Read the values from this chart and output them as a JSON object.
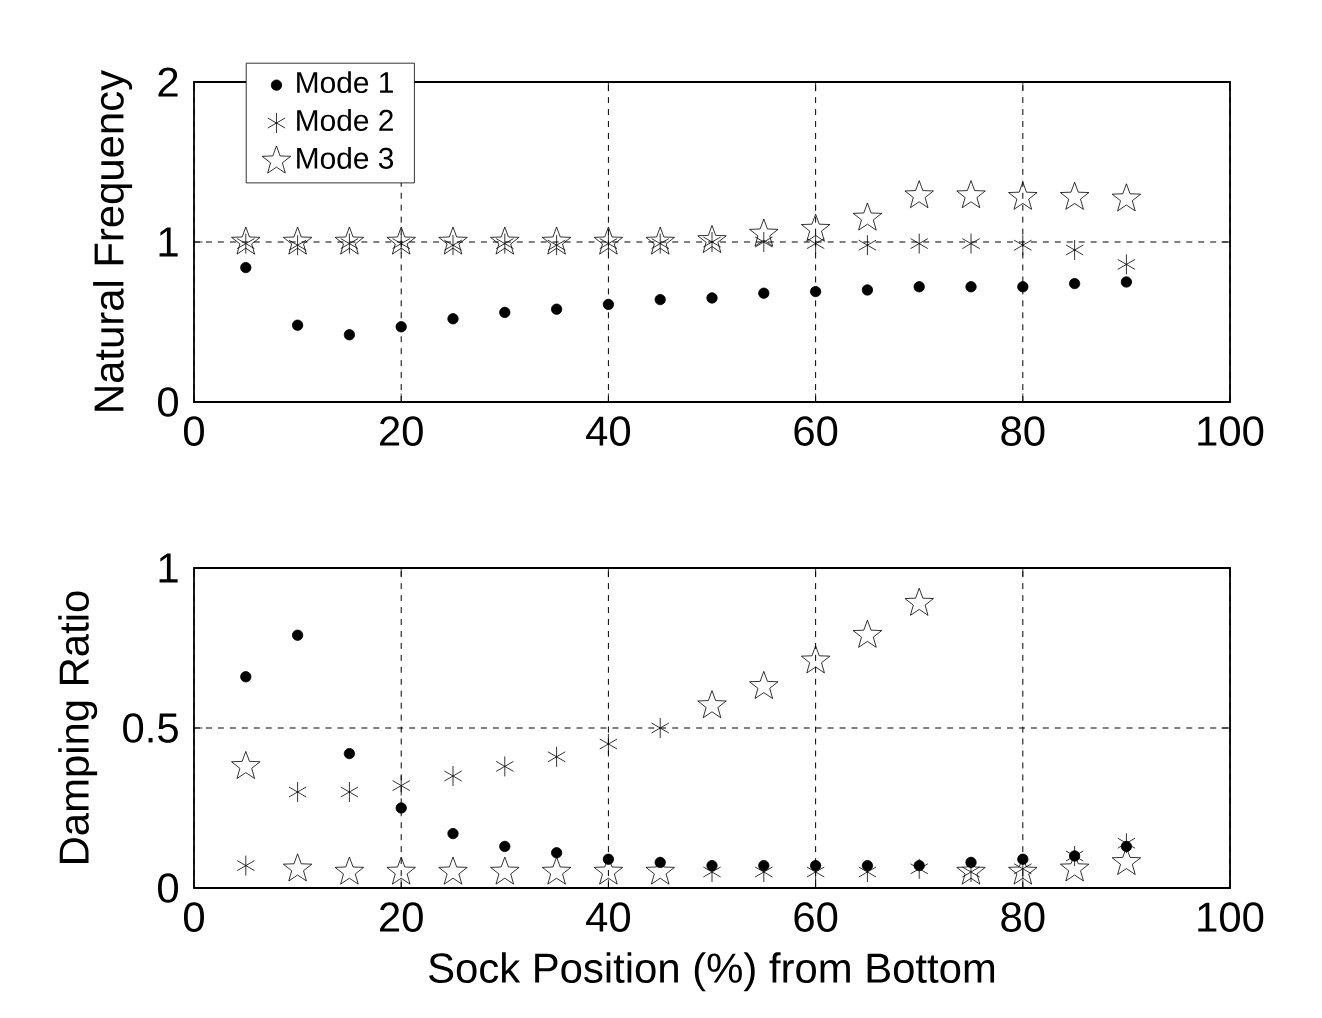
{
  "chart_data": [
    {
      "type": "scatter",
      "ylabel": "Natural Frequency",
      "x": [
        5,
        10,
        15,
        20,
        25,
        30,
        35,
        40,
        45,
        50,
        55,
        60,
        65,
        70,
        75,
        80,
        85,
        90
      ],
      "xlim": [
        0,
        100
      ],
      "ylim": [
        0,
        2
      ],
      "xticks": [
        0,
        20,
        40,
        60,
        80,
        100
      ],
      "yticks": [
        0,
        1,
        2
      ],
      "grid": true,
      "legend": "top left",
      "series": [
        {
          "name": "Mode 1",
          "color": "#000000",
          "marker": "circle",
          "values": [
            0.84,
            0.48,
            0.42,
            0.47,
            0.52,
            0.56,
            0.58,
            0.61,
            0.64,
            0.65,
            0.68,
            0.69,
            0.7,
            0.72,
            0.72,
            0.72,
            0.74,
            0.75
          ]
        },
        {
          "name": "Mode 2",
          "color": "#000000",
          "marker": "cross",
          "values": [
            0.99,
            0.98,
            0.99,
            0.99,
            0.98,
            0.99,
            0.98,
            0.99,
            0.99,
            1.0,
            1.0,
            0.99,
            0.98,
            0.99,
            0.99,
            0.98,
            0.95,
            0.86
          ]
        },
        {
          "name": "Mode 3",
          "color": "#000000",
          "marker": "star",
          "values": [
            1.0,
            1.0,
            1.0,
            1.0,
            1.0,
            1.0,
            1.0,
            1.0,
            1.0,
            1.01,
            1.05,
            1.08,
            1.15,
            1.29,
            1.29,
            1.28,
            1.28,
            1.27
          ]
        }
      ]
    },
    {
      "type": "scatter",
      "ylabel": "Damping Ratio",
      "xlabel": "Sock Position (%) from Bottom",
      "x": [
        5,
        10,
        15,
        20,
        25,
        30,
        35,
        40,
        45,
        50,
        55,
        60,
        65,
        70,
        75,
        80,
        85,
        90
      ],
      "xlim": [
        0,
        100
      ],
      "ylim": [
        0,
        1
      ],
      "xticks": [
        0,
        20,
        40,
        60,
        80,
        100
      ],
      "yticks": [
        0,
        0.5,
        1
      ],
      "grid": true,
      "series": [
        {
          "color": "#000000",
          "marker": "circle",
          "values": [
            0.66,
            0.79,
            0.42,
            0.25,
            0.17,
            0.13,
            0.11,
            0.09,
            0.08,
            0.07,
            0.07,
            0.07,
            0.07,
            0.07,
            0.08,
            0.09,
            0.1,
            0.13
          ]
        },
        {
          "color": "#000000",
          "marker": "cross",
          "values": [
            0.07,
            0.3,
            0.3,
            0.32,
            0.35,
            0.38,
            0.41,
            0.45,
            0.5,
            0.05,
            0.05,
            0.05,
            0.05,
            0.06,
            0.05,
            0.06,
            0.1,
            0.14
          ]
        },
        {
          "color": "#000000",
          "marker": "star",
          "values": [
            0.38,
            0.06,
            0.05,
            0.05,
            0.05,
            0.05,
            0.05,
            0.05,
            0.05,
            0.57,
            0.63,
            0.71,
            0.79,
            0.89,
            0.05,
            0.05,
            0.06,
            0.08
          ]
        }
      ]
    }
  ]
}
